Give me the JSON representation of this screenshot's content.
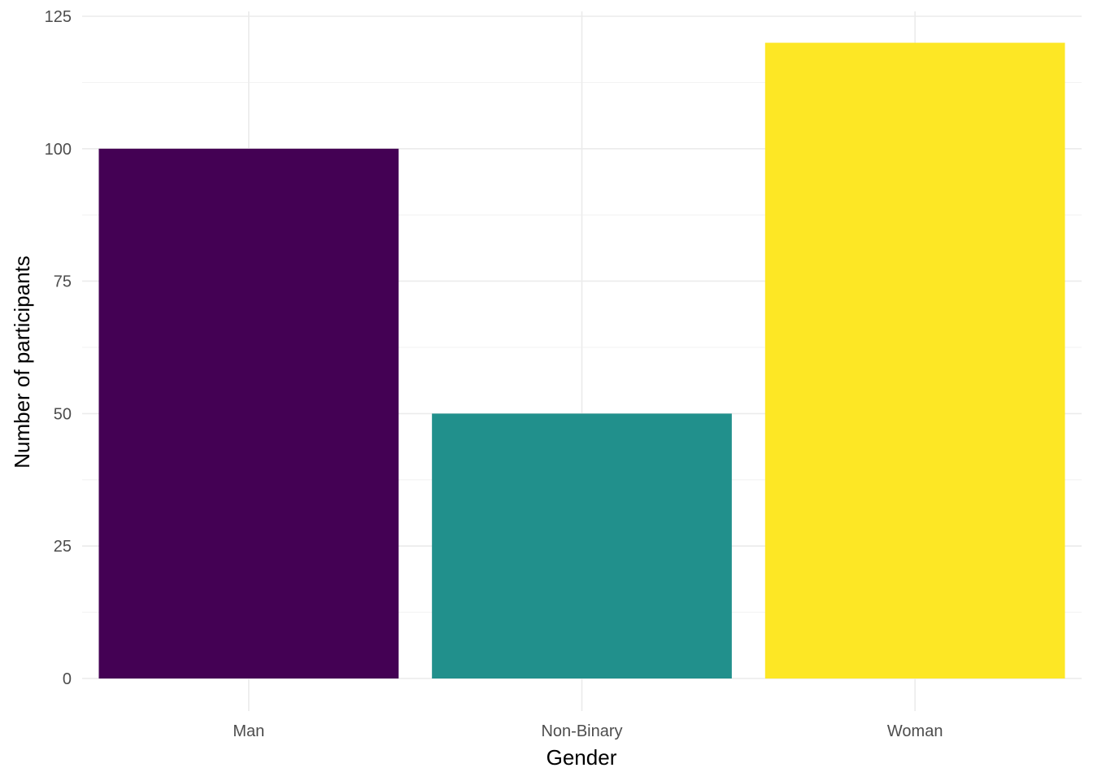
{
  "chart_data": {
    "type": "bar",
    "categories": [
      "Man",
      "Non-Binary",
      "Woman"
    ],
    "values": [
      100,
      50,
      120
    ],
    "colors": [
      "#440154",
      "#21908C",
      "#FDE725"
    ],
    "title": "",
    "xlabel": "Gender",
    "ylabel": "Number of participants",
    "ylim": [
      0,
      125
    ],
    "yticks": [
      0,
      25,
      50,
      75,
      100,
      125
    ],
    "grid": true,
    "legend": "none"
  }
}
